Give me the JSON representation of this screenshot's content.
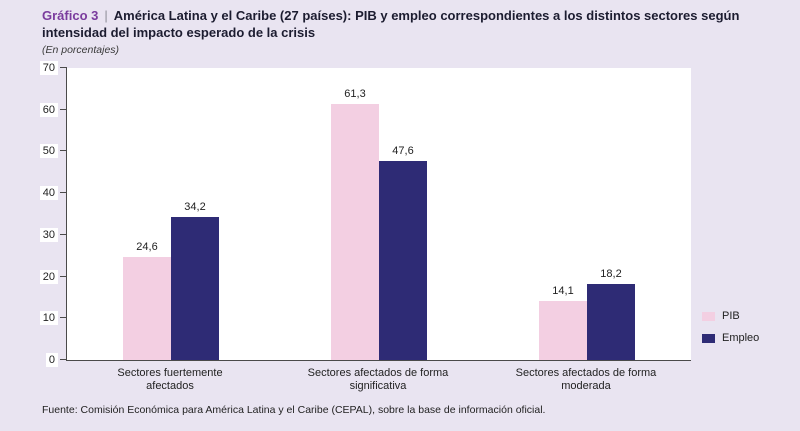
{
  "header": {
    "figure_label": "Gráfico 3",
    "separator": "|",
    "title": "América Latina y el Caribe (27 países): PIB y empleo correspondientes a los distintos sectores según intensidad del impacto esperado de la crisis",
    "subtitle": "(En porcentajes)"
  },
  "chart_data": {
    "type": "bar",
    "title": "América Latina y el Caribe (27 países): PIB y empleo correspondientes a los distintos sectores según intensidad del impacto esperado de la crisis",
    "subtitle": "(En porcentajes)",
    "categories": [
      "Sectores fuertemente afectados",
      "Sectores afectados de forma significativa",
      "Sectores afectados de forma moderada"
    ],
    "series": [
      {
        "name": "PIB",
        "color": "#f3cfe2",
        "values": [
          24.6,
          61.3,
          14.1
        ],
        "labels": [
          "24,6",
          "61,3",
          "14,1"
        ]
      },
      {
        "name": "Empleo",
        "color": "#2e2b75",
        "values": [
          34.2,
          47.6,
          18.2
        ],
        "labels": [
          "34,2",
          "47,6",
          "18,2"
        ]
      }
    ],
    "ylim": [
      0,
      70
    ],
    "yticks": [
      0,
      10,
      20,
      30,
      40,
      50,
      60,
      70
    ],
    "grid": false,
    "legend_position": "right"
  },
  "footer": {
    "source": "Fuente: Comisión Económica para América Latina y el Caribe (CEPAL), sobre la base de información oficial."
  },
  "colors": {
    "background": "#e9e4f1",
    "figure_label": "#7a3b9d",
    "pib_bar": "#f3cfe2",
    "empleo_bar": "#2e2b75"
  }
}
